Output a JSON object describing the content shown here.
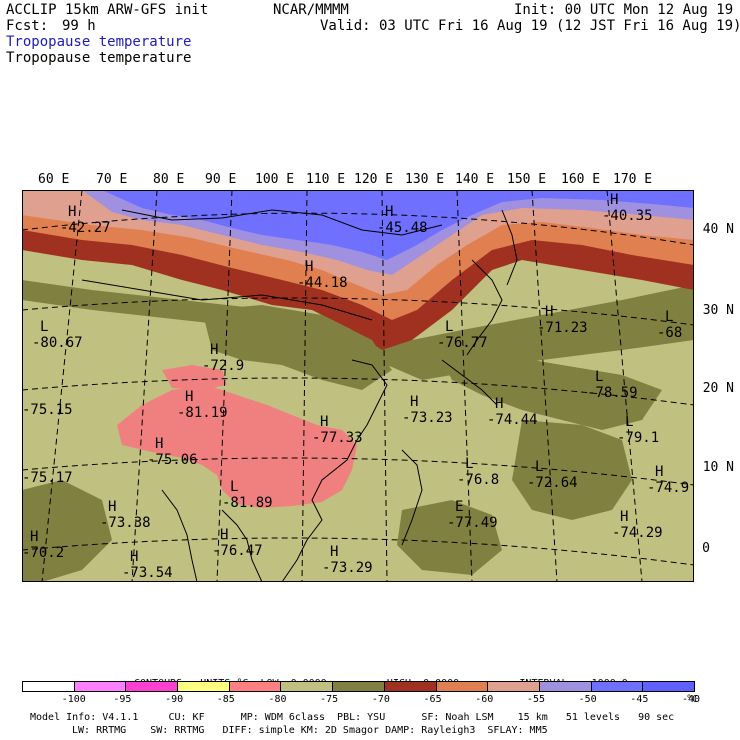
{
  "header": {
    "model": "ACCLIP 15km ARW-GFS init",
    "source": "NCAR/MMMM",
    "init": "Init: 00 UTC Mon 12 Aug 19",
    "fcst_label": "Fcst:",
    "fcst_value": "99 h",
    "valid": "Valid: 03 UTC Fri 16 Aug 19 (12 JST Fri 16 Aug 19)",
    "field_title_1": "Tropopause temperature",
    "field_title_2": "Tropopause temperature"
  },
  "axes": {
    "longitude_labels": [
      "60 E",
      "70 E",
      "80 E",
      "90 E",
      "100 E",
      "110 E",
      "120 E",
      "130 E",
      "140 E",
      "150 E",
      "160 E",
      "170 E"
    ],
    "latitude_labels": [
      "40 N",
      "30 N",
      "20 N",
      "10 N",
      "0"
    ]
  },
  "map_annotations": [
    {
      "mark": "H",
      "value": "-42.27"
    },
    {
      "mark": "H",
      "value": "-45.48"
    },
    {
      "mark": "H",
      "value": "-40.35"
    },
    {
      "mark": "H",
      "value": "-44.18"
    },
    {
      "mark": "L",
      "value": "-80.67"
    },
    {
      "mark": "H",
      "value": "-72.9"
    },
    {
      "mark": "L",
      "value": "-76.77"
    },
    {
      "mark": "H",
      "value": "-71.23"
    },
    {
      "mark": "L",
      "value": "-68"
    },
    {
      "mark": "H",
      "value": "-81.19"
    },
    {
      "mark": "H",
      "value": "-73.23"
    },
    {
      "mark": "L",
      "value": "-78.59"
    },
    {
      "mark": "H",
      "value": "-77.33"
    },
    {
      "mark": "H",
      "value": "-74.44"
    },
    {
      "mark": "L",
      "value": "-79.1"
    },
    {
      "mark": "H",
      "value": "-75.06"
    },
    {
      "mark": "L",
      "value": "-76.8"
    },
    {
      "mark": "L",
      "value": "-72.64"
    },
    {
      "mark": "H",
      "value": "-74.9"
    },
    {
      "mark": "L",
      "value": "-81.89"
    },
    {
      "mark": "H",
      "value": "-73.38"
    },
    {
      "mark": "E",
      "value": "-77.49"
    },
    {
      "mark": "H",
      "value": "-74.29"
    },
    {
      "mark": "H",
      "value": "-70.2"
    },
    {
      "mark": "H",
      "value": "-76.47"
    },
    {
      "mark": "H",
      "value": "-73.54"
    },
    {
      "mark": "H",
      "value": "-73.29"
    },
    {
      "mark": "",
      "value": "-75.15"
    },
    {
      "mark": "",
      "value": "-75.17"
    }
  ],
  "contour_info": {
    "contours_label": "CONTOURS:",
    "units_label": "UNITS=°C",
    "low_label": "LOW=",
    "low_value": "0.0000",
    "high_label": "HIGH=",
    "high_value": "0.0000",
    "interval_label": "INTERVAL=",
    "interval_value": "1000.0"
  },
  "colorbar": {
    "unit": "°C",
    "colors": [
      "#ffffff",
      "#ff80ff",
      "#ff40d0",
      "#ffff80",
      "#ff8080",
      "#c0c080",
      "#808040",
      "#a03020",
      "#e08050",
      "#e0a090",
      "#a090e0",
      "#7070ff",
      "#6060ff"
    ],
    "labels": [
      "-100",
      "-95",
      "-90",
      "-85",
      "-80",
      "-75",
      "-70",
      "-65",
      "-60",
      "-55",
      "-50",
      "-45",
      "-40"
    ]
  },
  "footer": {
    "line1": "Model Info: V4.1.1     CU: KF      MP: WDM 6class  PBL: YSU      SF: Noah LSM    15 km   51 levels   90 sec",
    "line2": "LW: RRTMG    SW: RRTMG   DIFF: simple KM: 2D Smagor DAMP: Rayleigh3  SFLAY: MM5"
  },
  "field_colors": {
    "cold_pink": "#f08080",
    "mid_olive_light": "#c0c080",
    "mid_olive_dark": "#808040",
    "warm_brown": "#a03020",
    "warm_orange": "#e08050",
    "warm_salmon": "#e0a090",
    "warm_lavender": "#a090e0",
    "warm_blue": "#7070ff"
  }
}
